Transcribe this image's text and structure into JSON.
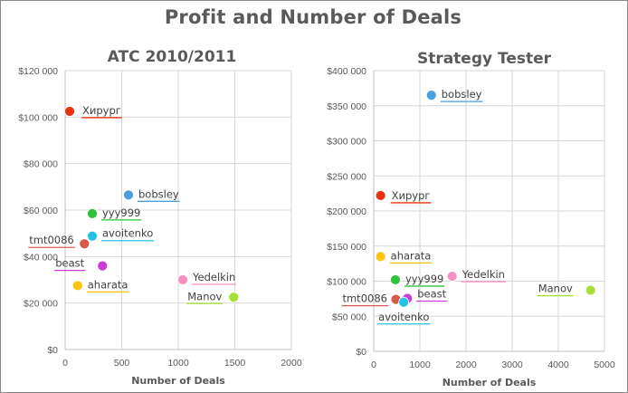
{
  "title": "Profit and Number of Deals",
  "chart_data": [
    {
      "type": "scatter",
      "title": "ATC 2010/2011",
      "xlabel": "Number of Deals",
      "ylabel": "",
      "xlim": [
        0,
        2000
      ],
      "ylim": [
        0,
        120000
      ],
      "x_ticks": [
        "0",
        "500",
        "1000",
        "1500",
        "2000"
      ],
      "y_ticks": [
        "$0",
        "$20 000",
        "$40 000",
        "$60 000",
        "$80 000",
        "$100 000",
        "$120 000"
      ],
      "grid": true,
      "points": [
        {
          "label": "Хирург",
          "x": 40,
          "y": 102500,
          "color": "#e8340e"
        },
        {
          "label": "bobsley",
          "x": 560,
          "y": 66500,
          "color": "#4a9fe0"
        },
        {
          "label": "yyy999",
          "x": 240,
          "y": 58500,
          "color": "#2ec33a"
        },
        {
          "label": "avoitenko",
          "x": 240,
          "y": 48800,
          "color": "#21c4e8"
        },
        {
          "label": "tmt0086",
          "x": 170,
          "y": 45500,
          "color": "#d9584c"
        },
        {
          "label": "beast",
          "x": 330,
          "y": 36000,
          "color": "#cd3ad6"
        },
        {
          "label": "aharata",
          "x": 110,
          "y": 27500,
          "color": "#ffc20e"
        },
        {
          "label": "Yedelkin",
          "x": 1040,
          "y": 30000,
          "color": "#f590c0"
        },
        {
          "label": "Manov",
          "x": 1490,
          "y": 22500,
          "color": "#a6e034"
        }
      ]
    },
    {
      "type": "scatter",
      "title": "Strategy Tester",
      "xlabel": "Number of Deals",
      "ylabel": "",
      "xlim": [
        0,
        5000
      ],
      "ylim": [
        0,
        400000
      ],
      "x_ticks": [
        "0",
        "1000",
        "2000",
        "3000",
        "4000",
        "5000"
      ],
      "y_ticks": [
        "$0",
        "$50 000",
        "$100 000",
        "$150 000",
        "$200 000",
        "$250 000",
        "$300 000",
        "$350 000",
        "$400 000"
      ],
      "grid": true,
      "points": [
        {
          "label": "bobsley",
          "x": 1250,
          "y": 365000,
          "color": "#4a9fe0"
        },
        {
          "label": "Хирург",
          "x": 150,
          "y": 222000,
          "color": "#e8340e"
        },
        {
          "label": "aharata",
          "x": 150,
          "y": 135000,
          "color": "#ffc20e"
        },
        {
          "label": "yyy999",
          "x": 470,
          "y": 102000,
          "color": "#2ec33a"
        },
        {
          "label": "Yedelkin",
          "x": 1700,
          "y": 107000,
          "color": "#f590c0"
        },
        {
          "label": "Manov",
          "x": 4700,
          "y": 87000,
          "color": "#a6e034"
        },
        {
          "label": "tmt0086",
          "x": 480,
          "y": 74000,
          "color": "#d9584c"
        },
        {
          "label": "beast",
          "x": 730,
          "y": 75500,
          "color": "#cd3ad6"
        },
        {
          "label": "avoitenko",
          "x": 650,
          "y": 70000,
          "color": "#21c4e8"
        }
      ]
    }
  ]
}
